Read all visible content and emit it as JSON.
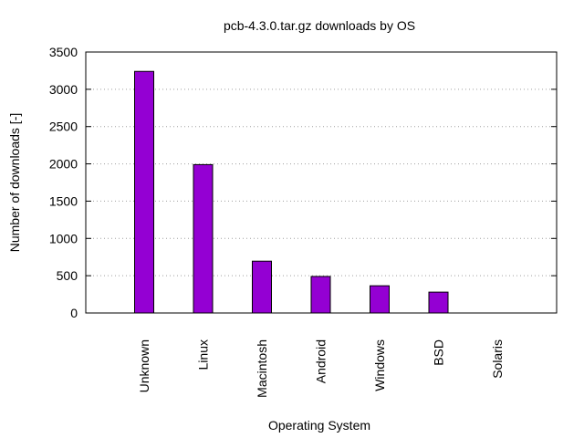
{
  "chart_data": {
    "type": "bar",
    "title": "pcb-4.3.0.tar.gz downloads by OS",
    "xlabel": "Operating System",
    "ylabel": "Number of downloads [-]",
    "categories": [
      "Unknown",
      "Linux",
      "Macintosh",
      "Android",
      "Windows",
      "BSD",
      "Solaris"
    ],
    "values": [
      3240,
      1990,
      695,
      490,
      365,
      280,
      0
    ],
    "ylim": [
      0,
      3500
    ],
    "yticks": [
      0,
      500,
      1000,
      1500,
      2000,
      2500,
      3000,
      3500
    ],
    "grid": true,
    "bar_color": "#9400d3"
  }
}
